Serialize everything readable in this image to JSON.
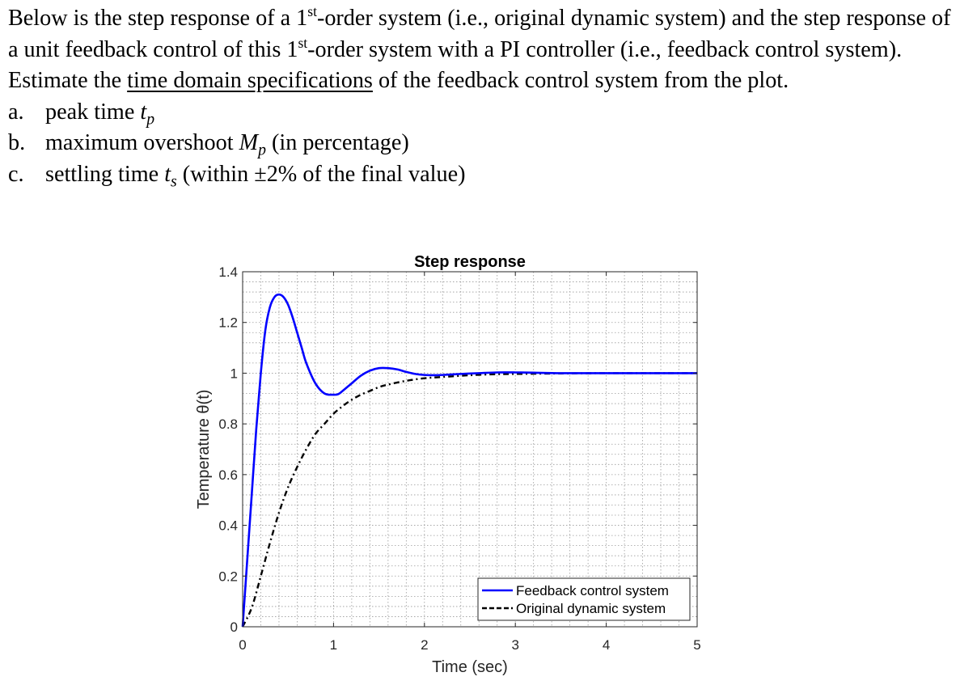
{
  "problem": {
    "s1": "Below is the step response of a 1",
    "st1": "st",
    "s2": "-order system (i.e., original dynamic system) and the step response of a unit feedback control of this 1",
    "st2": "st",
    "s3": "-order system with a PI controller (i.e., feedback control system). Estimate the ",
    "underlined": "time domain specifications",
    "s4": " of the feedback control system from the plot.",
    "items": [
      {
        "label": "a.",
        "text": "peak time ",
        "sym": "t",
        "sub": "p",
        "rest": ""
      },
      {
        "label": "b.",
        "text": "maximum overshoot ",
        "sym": "M",
        "sub": "p",
        "rest": " (in percentage)"
      },
      {
        "label": "c.",
        "text": "settling time ",
        "sym": "t",
        "sub": "s",
        "rest": " (within ±2% of the final value)"
      }
    ]
  },
  "chart_data": {
    "type": "line",
    "title": "Step response",
    "xlabel": "Time (sec)",
    "ylabel": "Temperature θ(t)",
    "xlim": [
      0,
      5
    ],
    "ylim": [
      0,
      1.4
    ],
    "xticks": [
      0,
      1,
      2,
      3,
      4,
      5
    ],
    "yticks": [
      0,
      0.2,
      0.4,
      0.6,
      0.8,
      1,
      1.2,
      1.4
    ],
    "xtick_labels": [
      "0",
      "1",
      "2",
      "3",
      "4",
      "5"
    ],
    "ytick_labels": [
      "0",
      "0.2",
      "0.4",
      "0.6",
      "0.8",
      "1",
      "1.2",
      "1.4"
    ],
    "grid": true,
    "minor_grid": true,
    "legend_position": "bottom-right",
    "series": [
      {
        "name": "Feedback control system",
        "color": "#0000ff",
        "style": "solid",
        "x": [
          0,
          0.05,
          0.1,
          0.15,
          0.2,
          0.25,
          0.3,
          0.35,
          0.4,
          0.45,
          0.5,
          0.55,
          0.6,
          0.65,
          0.7,
          0.8,
          0.9,
          1.0,
          1.05,
          1.1,
          1.2,
          1.3,
          1.4,
          1.5,
          1.6,
          1.7,
          1.8,
          1.9,
          2.0,
          2.1,
          2.2,
          2.4,
          2.6,
          2.8,
          3.0,
          3.2,
          3.5,
          4.0,
          4.5,
          5.0
        ],
        "y": [
          0,
          0.26,
          0.52,
          0.78,
          1.0,
          1.17,
          1.26,
          1.3,
          1.31,
          1.3,
          1.27,
          1.22,
          1.16,
          1.1,
          1.04,
          0.96,
          0.92,
          0.915,
          0.917,
          0.93,
          0.96,
          0.99,
          1.01,
          1.02,
          1.02,
          1.015,
          1.005,
          0.997,
          0.993,
          0.992,
          0.993,
          0.997,
          1.0,
          1.003,
          1.003,
          1.002,
          1.0,
          1.0,
          1.0,
          1.0
        ]
      },
      {
        "name": "Original dynamic system",
        "color": "#000000",
        "style": "dashed",
        "x": [
          0,
          0.1,
          0.2,
          0.3,
          0.4,
          0.5,
          0.6,
          0.7,
          0.8,
          0.9,
          1.0,
          1.1,
          1.2,
          1.3,
          1.4,
          1.5,
          1.6,
          1.8,
          2.0,
          2.2,
          2.5,
          2.8,
          3.0,
          3.5,
          4.0,
          4.5,
          5.0
        ],
        "y": [
          0,
          0.075,
          0.2,
          0.33,
          0.45,
          0.55,
          0.63,
          0.7,
          0.76,
          0.8,
          0.84,
          0.87,
          0.895,
          0.915,
          0.93,
          0.945,
          0.955,
          0.97,
          0.98,
          0.985,
          0.992,
          0.996,
          0.997,
          0.999,
          1.0,
          1.0,
          1.0
        ]
      }
    ]
  }
}
